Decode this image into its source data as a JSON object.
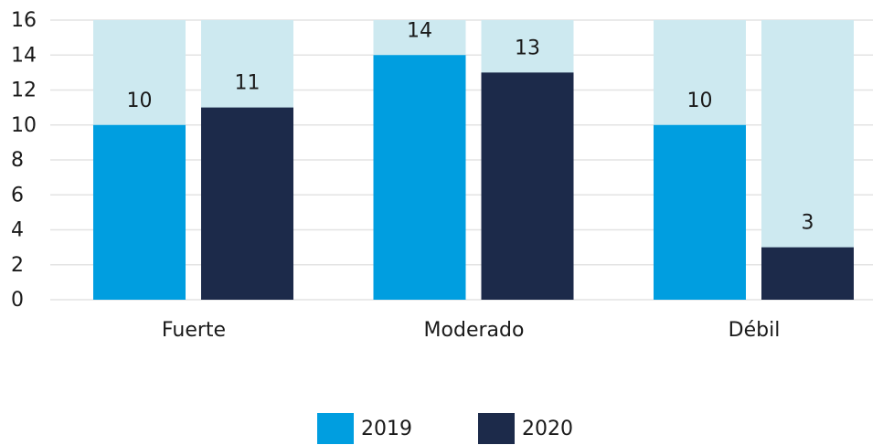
{
  "chart_data": {
    "type": "bar",
    "categories": [
      "Fuerte",
      "Moderado",
      "Débil"
    ],
    "series": [
      {
        "name": "2019",
        "color": "#009ee0",
        "values": [
          10,
          14,
          10
        ]
      },
      {
        "name": "2020",
        "color": "#1c2a4a",
        "values": [
          11,
          13,
          3
        ]
      }
    ],
    "ylim": [
      0,
      16
    ],
    "yticks": [
      0,
      2,
      4,
      6,
      8,
      10,
      12,
      14,
      16
    ],
    "grid": true,
    "track_color": "#cde9f0",
    "legend": "bottom"
  }
}
